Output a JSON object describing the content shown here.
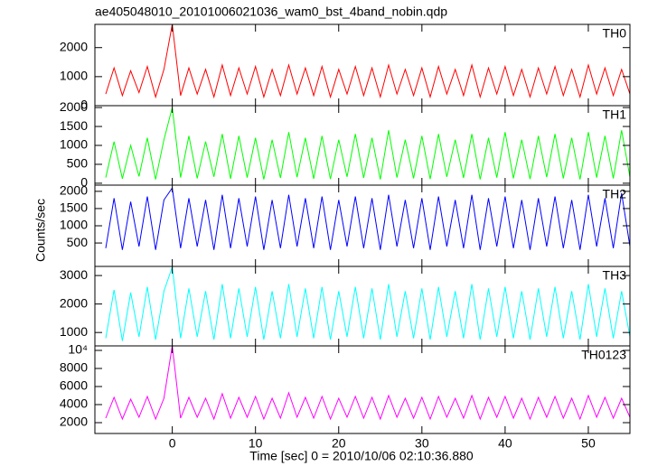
{
  "chart_data": [
    {
      "type": "line",
      "title": "ae405048010_20101006021036_wam0_bst_4band_nobin.qdp",
      "x": [
        -8,
        -7,
        -6,
        -5,
        -4,
        -3,
        -2,
        -1,
        0,
        1,
        2,
        3,
        4,
        5,
        6,
        7,
        8,
        9,
        10,
        11,
        12,
        13,
        14,
        15,
        16,
        17,
        18,
        19,
        20,
        21,
        22,
        23,
        24,
        25,
        26,
        27,
        28,
        29,
        30,
        31,
        32,
        33,
        34,
        35,
        36,
        37,
        38,
        39,
        40,
        41,
        42,
        43,
        44,
        45,
        46,
        47,
        48,
        49,
        50,
        51,
        52,
        53,
        54,
        55
      ],
      "series": [
        {
          "name": "TH0",
          "color": "#ff0000",
          "values": [
            400,
            1300,
            350,
            1200,
            450,
            1350,
            300,
            1250,
            2800,
            350,
            1300,
            400,
            1250,
            300,
            1400,
            350,
            1300,
            400,
            1350,
            300,
            1250,
            350,
            1400,
            400,
            1300,
            350,
            1350,
            300,
            1250,
            400,
            1350,
            350,
            1300,
            300,
            1400,
            400,
            1250,
            350,
            1300,
            300,
            1350,
            400,
            1250,
            350,
            1400,
            300,
            1300,
            400,
            1350,
            350,
            1250,
            300,
            1300,
            400,
            1350,
            350,
            1250,
            300,
            1400,
            400,
            1300,
            350,
            1250,
            400
          ]
        }
      ],
      "xlim": [
        -9.3,
        55
      ],
      "xticks": [
        0,
        10,
        20,
        30,
        40,
        50
      ],
      "ylim": [
        0,
        2800
      ],
      "yticks": [
        0,
        1000,
        2000
      ]
    },
    {
      "type": "line",
      "x": [
        -8,
        -7,
        -6,
        -5,
        -4,
        -3,
        -2,
        -1,
        0,
        1,
        2,
        3,
        4,
        5,
        6,
        7,
        8,
        9,
        10,
        11,
        12,
        13,
        14,
        15,
        16,
        17,
        18,
        19,
        20,
        21,
        22,
        23,
        24,
        25,
        26,
        27,
        28,
        29,
        30,
        31,
        32,
        33,
        34,
        35,
        36,
        37,
        38,
        39,
        40,
        41,
        42,
        43,
        44,
        45,
        46,
        47,
        48,
        49,
        50,
        51,
        52,
        53,
        54,
        55
      ],
      "series": [
        {
          "name": "TH1",
          "color": "#00ff00",
          "values": [
            150,
            1100,
            120,
            1000,
            180,
            1200,
            100,
            1150,
            2000,
            150,
            1250,
            130,
            1100,
            170,
            1300,
            120,
            1250,
            150,
            1200,
            100,
            1150,
            140,
            1350,
            160,
            1200,
            120,
            1250,
            110,
            1150,
            170,
            1300,
            140,
            1200,
            100,
            1400,
            150,
            1150,
            130,
            1250,
            110,
            1300,
            170,
            1150,
            140,
            1300,
            100,
            1200,
            150,
            1350,
            130,
            1150,
            110,
            1250,
            160,
            1300,
            130,
            1200,
            100,
            1350,
            150,
            1250,
            130,
            1400,
            160
          ]
        }
      ],
      "xlim": [
        -9.3,
        55
      ],
      "xticks": [
        0,
        10,
        20,
        30,
        40,
        50
      ],
      "ylim": [
        -50,
        2050
      ],
      "yticks": [
        0,
        500,
        1000,
        1500,
        2000
      ]
    },
    {
      "type": "line",
      "ylabel": "Counts/sec",
      "x": [
        -8,
        -7,
        -6,
        -5,
        -4,
        -3,
        -2,
        -1,
        0,
        1,
        2,
        3,
        4,
        5,
        6,
        7,
        8,
        9,
        10,
        11,
        12,
        13,
        14,
        15,
        16,
        17,
        18,
        19,
        20,
        21,
        22,
        23,
        24,
        25,
        26,
        27,
        28,
        29,
        30,
        31,
        32,
        33,
        34,
        35,
        36,
        37,
        38,
        39,
        40,
        41,
        42,
        43,
        44,
        45,
        46,
        47,
        48,
        49,
        50,
        51,
        52,
        53,
        54,
        55
      ],
      "series": [
        {
          "name": "TH2",
          "color": "#0000ff",
          "values": [
            350,
            1800,
            300,
            1700,
            400,
            1850,
            300,
            1750,
            2100,
            350,
            1800,
            400,
            1750,
            300,
            1900,
            350,
            1800,
            400,
            1850,
            300,
            1750,
            350,
            1900,
            400,
            1800,
            350,
            1850,
            300,
            1750,
            400,
            1850,
            350,
            1800,
            300,
            1900,
            400,
            1750,
            350,
            1800,
            300,
            1850,
            400,
            1750,
            350,
            1900,
            300,
            1800,
            400,
            1850,
            350,
            1750,
            300,
            1800,
            400,
            1850,
            350,
            1750,
            300,
            1900,
            400,
            1800,
            350,
            1950,
            400
          ]
        }
      ],
      "xlim": [
        -9.3,
        55
      ],
      "xticks": [
        0,
        10,
        20,
        30,
        40,
        50
      ],
      "ylim": [
        -180,
        2180
      ],
      "yticks": [
        500,
        1000,
        1500,
        2000
      ]
    },
    {
      "type": "line",
      "x": [
        -8,
        -7,
        -6,
        -5,
        -4,
        -3,
        -2,
        -1,
        0,
        1,
        2,
        3,
        4,
        5,
        6,
        7,
        8,
        9,
        10,
        11,
        12,
        13,
        14,
        15,
        16,
        17,
        18,
        19,
        20,
        21,
        22,
        23,
        24,
        25,
        26,
        27,
        28,
        29,
        30,
        31,
        32,
        33,
        34,
        35,
        36,
        37,
        38,
        39,
        40,
        41,
        42,
        43,
        44,
        45,
        46,
        47,
        48,
        49,
        50,
        51,
        52,
        53,
        54,
        55
      ],
      "series": [
        {
          "name": "TH3",
          "color": "#00ffff",
          "values": [
            800,
            2500,
            700,
            2400,
            850,
            2600,
            750,
            2450,
            3300,
            800,
            2550,
            850,
            2450,
            750,
            2700,
            800,
            2550,
            850,
            2600,
            750,
            2450,
            800,
            2700,
            850,
            2550,
            800,
            2600,
            750,
            2450,
            850,
            2600,
            800,
            2550,
            750,
            2700,
            850,
            2450,
            800,
            2550,
            750,
            2600,
            850,
            2450,
            800,
            2700,
            750,
            2550,
            850,
            2600,
            800,
            2450,
            750,
            2550,
            850,
            2600,
            800,
            2450,
            750,
            2700,
            850,
            2550,
            800,
            2450,
            850
          ]
        }
      ],
      "xlim": [
        -9.3,
        55
      ],
      "xticks": [
        0,
        10,
        20,
        30,
        40,
        50
      ],
      "ylim": [
        530,
        3320
      ],
      "yticks": [
        1000,
        2000,
        3000
      ]
    },
    {
      "type": "line",
      "xlabel": "Time [sec] 0 = 2010/10/06 02:10:36.880",
      "x": [
        -8,
        -7,
        -6,
        -5,
        -4,
        -3,
        -2,
        -1,
        0,
        1,
        2,
        3,
        4,
        5,
        6,
        7,
        8,
        9,
        10,
        11,
        12,
        13,
        14,
        15,
        16,
        17,
        18,
        19,
        20,
        21,
        22,
        23,
        24,
        25,
        26,
        27,
        28,
        29,
        30,
        31,
        32,
        33,
        34,
        35,
        36,
        37,
        38,
        39,
        40,
        41,
        42,
        43,
        44,
        45,
        46,
        47,
        48,
        49,
        50,
        51,
        52,
        53,
        54,
        55
      ],
      "series": [
        {
          "name": "TH0123",
          "color": "#ff00ff",
          "values": [
            2500,
            4800,
            2400,
            4600,
            2600,
            4900,
            2400,
            4700,
            10500,
            2500,
            4800,
            2600,
            4700,
            2400,
            5200,
            2500,
            4800,
            2600,
            4900,
            2400,
            4700,
            2500,
            5300,
            2600,
            4800,
            2500,
            4900,
            2400,
            4700,
            2600,
            4900,
            2500,
            4800,
            2400,
            5000,
            2600,
            4700,
            2500,
            4800,
            2400,
            4900,
            2600,
            4700,
            2500,
            5000,
            2400,
            4800,
            2600,
            4900,
            2500,
            4700,
            2400,
            4800,
            2600,
            4900,
            2500,
            4700,
            2400,
            5000,
            2600,
            4800,
            2500,
            4700,
            2600
          ]
        }
      ],
      "xlim": [
        -9.3,
        55
      ],
      "xticks": [
        0,
        10,
        20,
        30,
        40,
        50
      ],
      "ylim": [
        800,
        10500
      ],
      "yticks": [
        2000,
        4000,
        6000,
        8000,
        {
          "value": 10000,
          "label": "10⁴"
        }
      ]
    }
  ]
}
